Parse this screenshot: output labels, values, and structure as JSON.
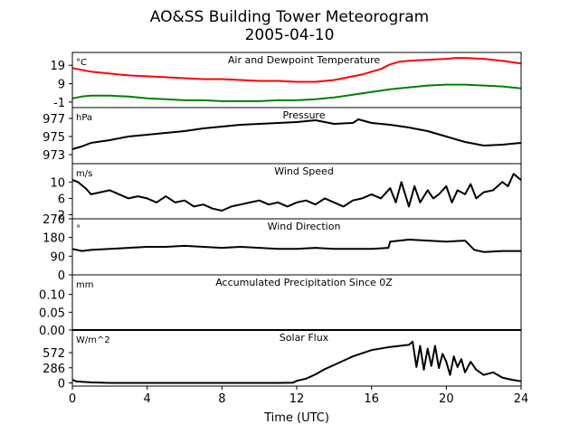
{
  "chart_data": {
    "type": "line",
    "title": "AO&SS Building Tower Meteorogram",
    "subtitle": "2005-04-10",
    "xlabel": "Time (UTC)",
    "xlim": [
      0,
      24
    ],
    "xticks": [
      "0",
      "4",
      "8",
      "12",
      "16",
      "20",
      "24"
    ],
    "panels": [
      {
        "title": "Air and Dewpoint Temperature",
        "unit": "°C",
        "ylim": [
          -4,
          26
        ],
        "yticks": [
          "19",
          "9",
          "-1"
        ],
        "series": [
          {
            "color": "#ff0000",
            "x": [
              0,
              0.5,
              1,
              2,
              3,
              4,
              5,
              6,
              7,
              8,
              9,
              10,
              11,
              12,
              12.5,
              13,
              13.5,
              14,
              14.5,
              15,
              15.5,
              16,
              16.5,
              17,
              17.5,
              18,
              19,
              20,
              20.5,
              21,
              22,
              23,
              24
            ],
            "y": [
              17.5,
              16.5,
              15.5,
              14.5,
              13.5,
              13,
              12.5,
              12,
              11.5,
              11.5,
              11,
              10.5,
              10.5,
              10,
              10,
              10,
              10.5,
              11,
              12,
              13,
              14,
              15.5,
              17,
              19.5,
              21,
              21.5,
              22,
              22.5,
              23,
              23,
              22.5,
              21.5,
              20
            ]
          },
          {
            "color": "#008000",
            "x": [
              0,
              0.5,
              1,
              2,
              3,
              4,
              5,
              6,
              7,
              8,
              9,
              10,
              11,
              12,
              13,
              14,
              15,
              16,
              17,
              18,
              19,
              20,
              21,
              22,
              23,
              24
            ],
            "y": [
              1,
              2,
              2.5,
              2.5,
              2,
              1,
              0.5,
              0,
              0,
              -0.5,
              -0.5,
              -0.5,
              0,
              0,
              0.5,
              1.5,
              3,
              4.5,
              6,
              7,
              8,
              8.5,
              8.5,
              8,
              7.5,
              6.5
            ]
          }
        ]
      },
      {
        "title": "Pressure",
        "unit": "hPa",
        "ylim": [
          972,
          978.2
        ],
        "yticks": [
          "977",
          "975",
          "973"
        ],
        "series": [
          {
            "color": "#000000",
            "x": [
              0,
              0.5,
              1,
              2,
              3,
              4,
              5,
              6,
              7,
              8,
              9,
              10,
              11,
              12,
              13,
              13.5,
              14,
              15,
              15.3,
              16,
              17,
              18,
              19,
              20,
              21,
              22,
              23,
              24
            ],
            "y": [
              973.6,
              973.9,
              974.3,
              974.6,
              975,
              975.2,
              975.4,
              975.6,
              975.9,
              976.1,
              976.3,
              976.4,
              976.5,
              976.6,
              976.8,
              976.6,
              976.4,
              976.5,
              976.9,
              976.5,
              976.3,
              976,
              975.6,
              975,
              974.4,
              974,
              974.1,
              974.3
            ]
          }
        ]
      },
      {
        "title": "Wind Speed",
        "unit": "m/s",
        "ylim": [
          1,
          14.5
        ],
        "yticks": [
          "10",
          "6",
          "2"
        ],
        "series": [
          {
            "color": "#000000",
            "x": [
              0,
              0.3,
              0.7,
              1,
              1.5,
              2,
              2.5,
              3,
              3.5,
              4,
              4.5,
              5,
              5.5,
              6,
              6.5,
              7,
              7.5,
              8,
              8.5,
              9,
              9.5,
              10,
              10.5,
              11,
              11.5,
              12,
              12.5,
              13,
              13.5,
              14,
              14.5,
              15,
              15.5,
              16,
              16.5,
              17,
              17.3,
              17.6,
              18,
              18.3,
              18.6,
              19,
              19.3,
              19.6,
              20,
              20.3,
              20.6,
              21,
              21.3,
              21.6,
              22,
              22.5,
              23,
              23.3,
              23.6,
              24
            ],
            "y": [
              10.5,
              10,
              8.5,
              7,
              7.5,
              8,
              7,
              6,
              6.5,
              6,
              5,
              6.5,
              5,
              5.5,
              4,
              4.5,
              3.5,
              3,
              4,
              4.5,
              5,
              5.5,
              4.5,
              5,
              4,
              5,
              5.5,
              4.5,
              6,
              5,
              4,
              5.5,
              6,
              7,
              6,
              8.5,
              5,
              10,
              4,
              9,
              5,
              8,
              6,
              7,
              9,
              5,
              8,
              7,
              9.5,
              6,
              7.5,
              8,
              10,
              9,
              12,
              10.5
            ]
          }
        ]
      },
      {
        "title": "Wind Direction",
        "unit": "°",
        "ylim": [
          0,
          270
        ],
        "yticks": [
          "270",
          "180",
          "90",
          "0"
        ],
        "series": [
          {
            "color": "#000000",
            "x": [
              0,
              0.5,
              1,
              2,
              3,
              4,
              5,
              6,
              7,
              8,
              9,
              10,
              11,
              12,
              13,
              14,
              15,
              16,
              16.9,
              17,
              18,
              19,
              20,
              21,
              21.5,
              22,
              23,
              24
            ],
            "y": [
              125,
              115,
              120,
              125,
              130,
              135,
              135,
              140,
              135,
              130,
              135,
              130,
              125,
              125,
              130,
              125,
              125,
              125,
              130,
              160,
              170,
              165,
              160,
              165,
              120,
              110,
              115,
              115
            ]
          }
        ]
      },
      {
        "title": "Accumulated Precipitation Since 0Z",
        "unit": "mm",
        "ylim": [
          0,
          0.155
        ],
        "yticks": [
          "0.10",
          "0.05",
          "0.00"
        ],
        "series": [
          {
            "color": "#000000",
            "x": [
              0,
              24
            ],
            "y": [
              0,
              0
            ]
          }
        ]
      },
      {
        "title": "Solar Flux",
        "unit": "W/m^2",
        "ylim": [
          -60,
          1000
        ],
        "yticks": [
          "572",
          "286",
          "0"
        ],
        "series": [
          {
            "color": "#000000",
            "x": [
              0,
              0.2,
              0.5,
              1,
              2,
              4,
              6,
              8,
              10,
              11,
              11.8,
              12,
              12.5,
              13,
              13.5,
              14,
              14.5,
              15,
              15.5,
              16,
              17,
              18,
              18.2,
              18.4,
              18.6,
              18.8,
              19,
              19.2,
              19.4,
              19.6,
              19.8,
              20,
              20.2,
              20.4,
              20.6,
              20.8,
              21,
              21.3,
              21.6,
              22,
              22.5,
              23,
              23.5,
              24
            ],
            "y": [
              60,
              30,
              20,
              10,
              0,
              0,
              0,
              0,
              0,
              0,
              5,
              40,
              80,
              160,
              260,
              340,
              420,
              500,
              560,
              620,
              680,
              720,
              780,
              300,
              700,
              250,
              650,
              320,
              700,
              280,
              550,
              400,
              150,
              500,
              300,
              450,
              200,
              400,
              250,
              150,
              200,
              100,
              60,
              30
            ]
          }
        ]
      }
    ]
  }
}
